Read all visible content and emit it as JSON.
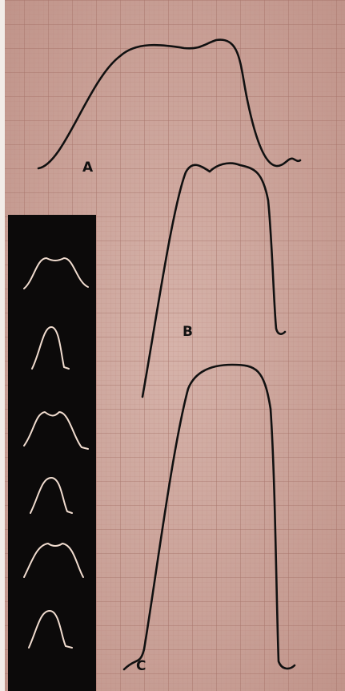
{
  "curves": [
    {
      "label": "A"
    },
    {
      "label": "B"
    },
    {
      "label": "C"
    }
  ]
}
